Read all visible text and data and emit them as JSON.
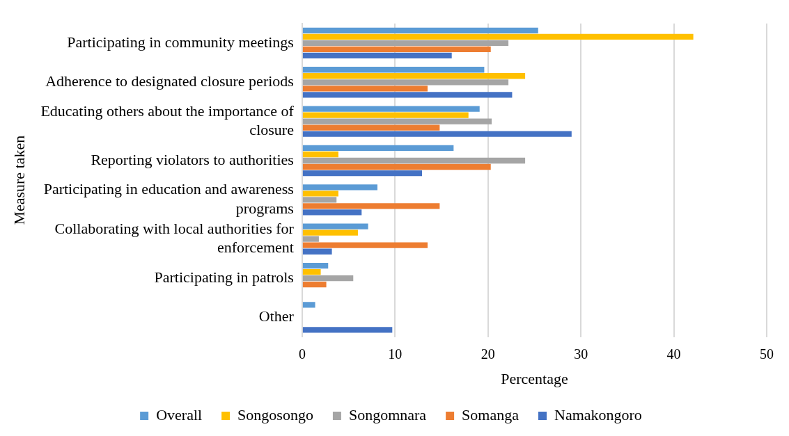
{
  "chart_data": {
    "type": "bar",
    "orientation": "horizontal",
    "xlabel": "Percentage",
    "ylabel": "Measure taken",
    "categories": [
      "Participating in community meetings",
      "Adherence to designated closure periods",
      "Educating others about the importance of closure",
      "Reporting violators to authorities",
      "Participating in education and awareness programs",
      "Collaborating with local authorities for enforcement",
      "Participating in patrols",
      "Other"
    ],
    "series": [
      {
        "name": "Overall",
        "color": "#5b9bd5",
        "values": [
          25.4,
          19.6,
          19.1,
          16.3,
          8.1,
          7.1,
          2.8,
          1.4
        ]
      },
      {
        "name": "Songosongo",
        "color": "#ffc000",
        "values": [
          42.1,
          24.0,
          17.9,
          3.9,
          3.9,
          6.0,
          2.0,
          0
        ]
      },
      {
        "name": "Songomnara",
        "color": "#a5a5a5",
        "values": [
          22.2,
          22.2,
          20.4,
          24.0,
          3.7,
          1.8,
          5.5,
          0
        ]
      },
      {
        "name": "Somanga",
        "color": "#ed7d31",
        "values": [
          20.3,
          13.5,
          14.8,
          20.3,
          14.8,
          13.5,
          2.6,
          0
        ]
      },
      {
        "name": "Namakongoro",
        "color": "#4472c4",
        "values": [
          16.1,
          22.6,
          29.0,
          12.9,
          6.4,
          3.2,
          0,
          9.7
        ]
      }
    ],
    "xlim": [
      0,
      50
    ],
    "xticks": [
      0,
      10,
      20,
      30,
      40,
      50
    ],
    "grid": "x",
    "legend": "bottom"
  }
}
